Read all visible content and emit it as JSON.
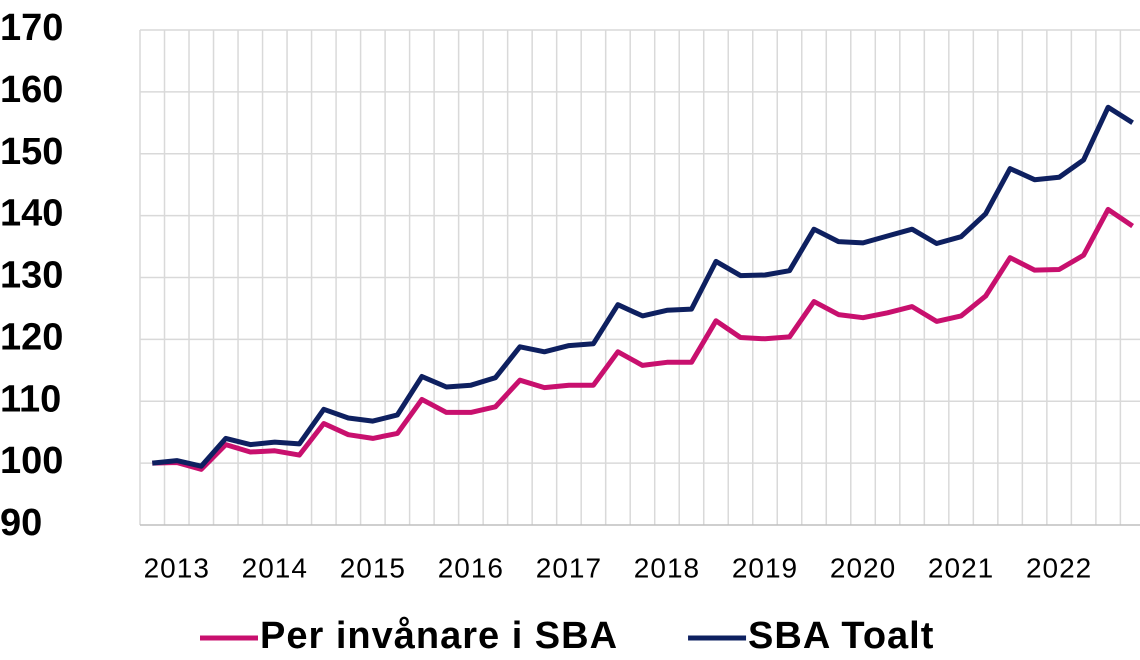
{
  "chart_data": {
    "type": "line",
    "categories": [
      null,
      "2013",
      null,
      null,
      null,
      "2014",
      null,
      null,
      null,
      "2015",
      null,
      null,
      null,
      "2016",
      null,
      null,
      null,
      "2017",
      null,
      null,
      null,
      "2018",
      null,
      null,
      null,
      "2019",
      null,
      null,
      null,
      "2020",
      null,
      null,
      null,
      "2021",
      null,
      null,
      null,
      "2022",
      null,
      null,
      null
    ],
    "series": [
      {
        "name": "Per invånare i SBA",
        "color": "#c8106e",
        "values": [
          100,
          100.1,
          99,
          103,
          101.8,
          102,
          101.3,
          106.4,
          104.6,
          104,
          104.8,
          110.3,
          108.2,
          108.2,
          109.1,
          113.4,
          112.2,
          112.6,
          112.6,
          118,
          115.8,
          116.3,
          116.3,
          123,
          120.3,
          120.1,
          120.4,
          126.1,
          124,
          123.5,
          124.3,
          125.3,
          122.9,
          123.8,
          127,
          133.2,
          131.2,
          131.3,
          133.6,
          141,
          138.3
        ]
      },
      {
        "name": "SBA Toalt",
        "color": "#0e2060",
        "values": [
          100,
          100.4,
          99.5,
          104,
          103,
          103.4,
          103.1,
          108.7,
          107.3,
          106.8,
          107.8,
          114,
          112.3,
          112.6,
          113.8,
          118.8,
          118,
          119,
          119.3,
          125.6,
          123.8,
          124.7,
          124.9,
          132.6,
          130.3,
          130.4,
          131.1,
          137.8,
          135.8,
          135.6,
          136.7,
          137.8,
          135.5,
          136.6,
          140.3,
          147.6,
          145.8,
          146.2,
          149,
          157.5,
          155
        ]
      }
    ],
    "ylim": [
      90,
      170
    ],
    "yticks": [
      90,
      100,
      110,
      120,
      130,
      140,
      150,
      160,
      170
    ],
    "grid": true,
    "legend": "bottom"
  }
}
